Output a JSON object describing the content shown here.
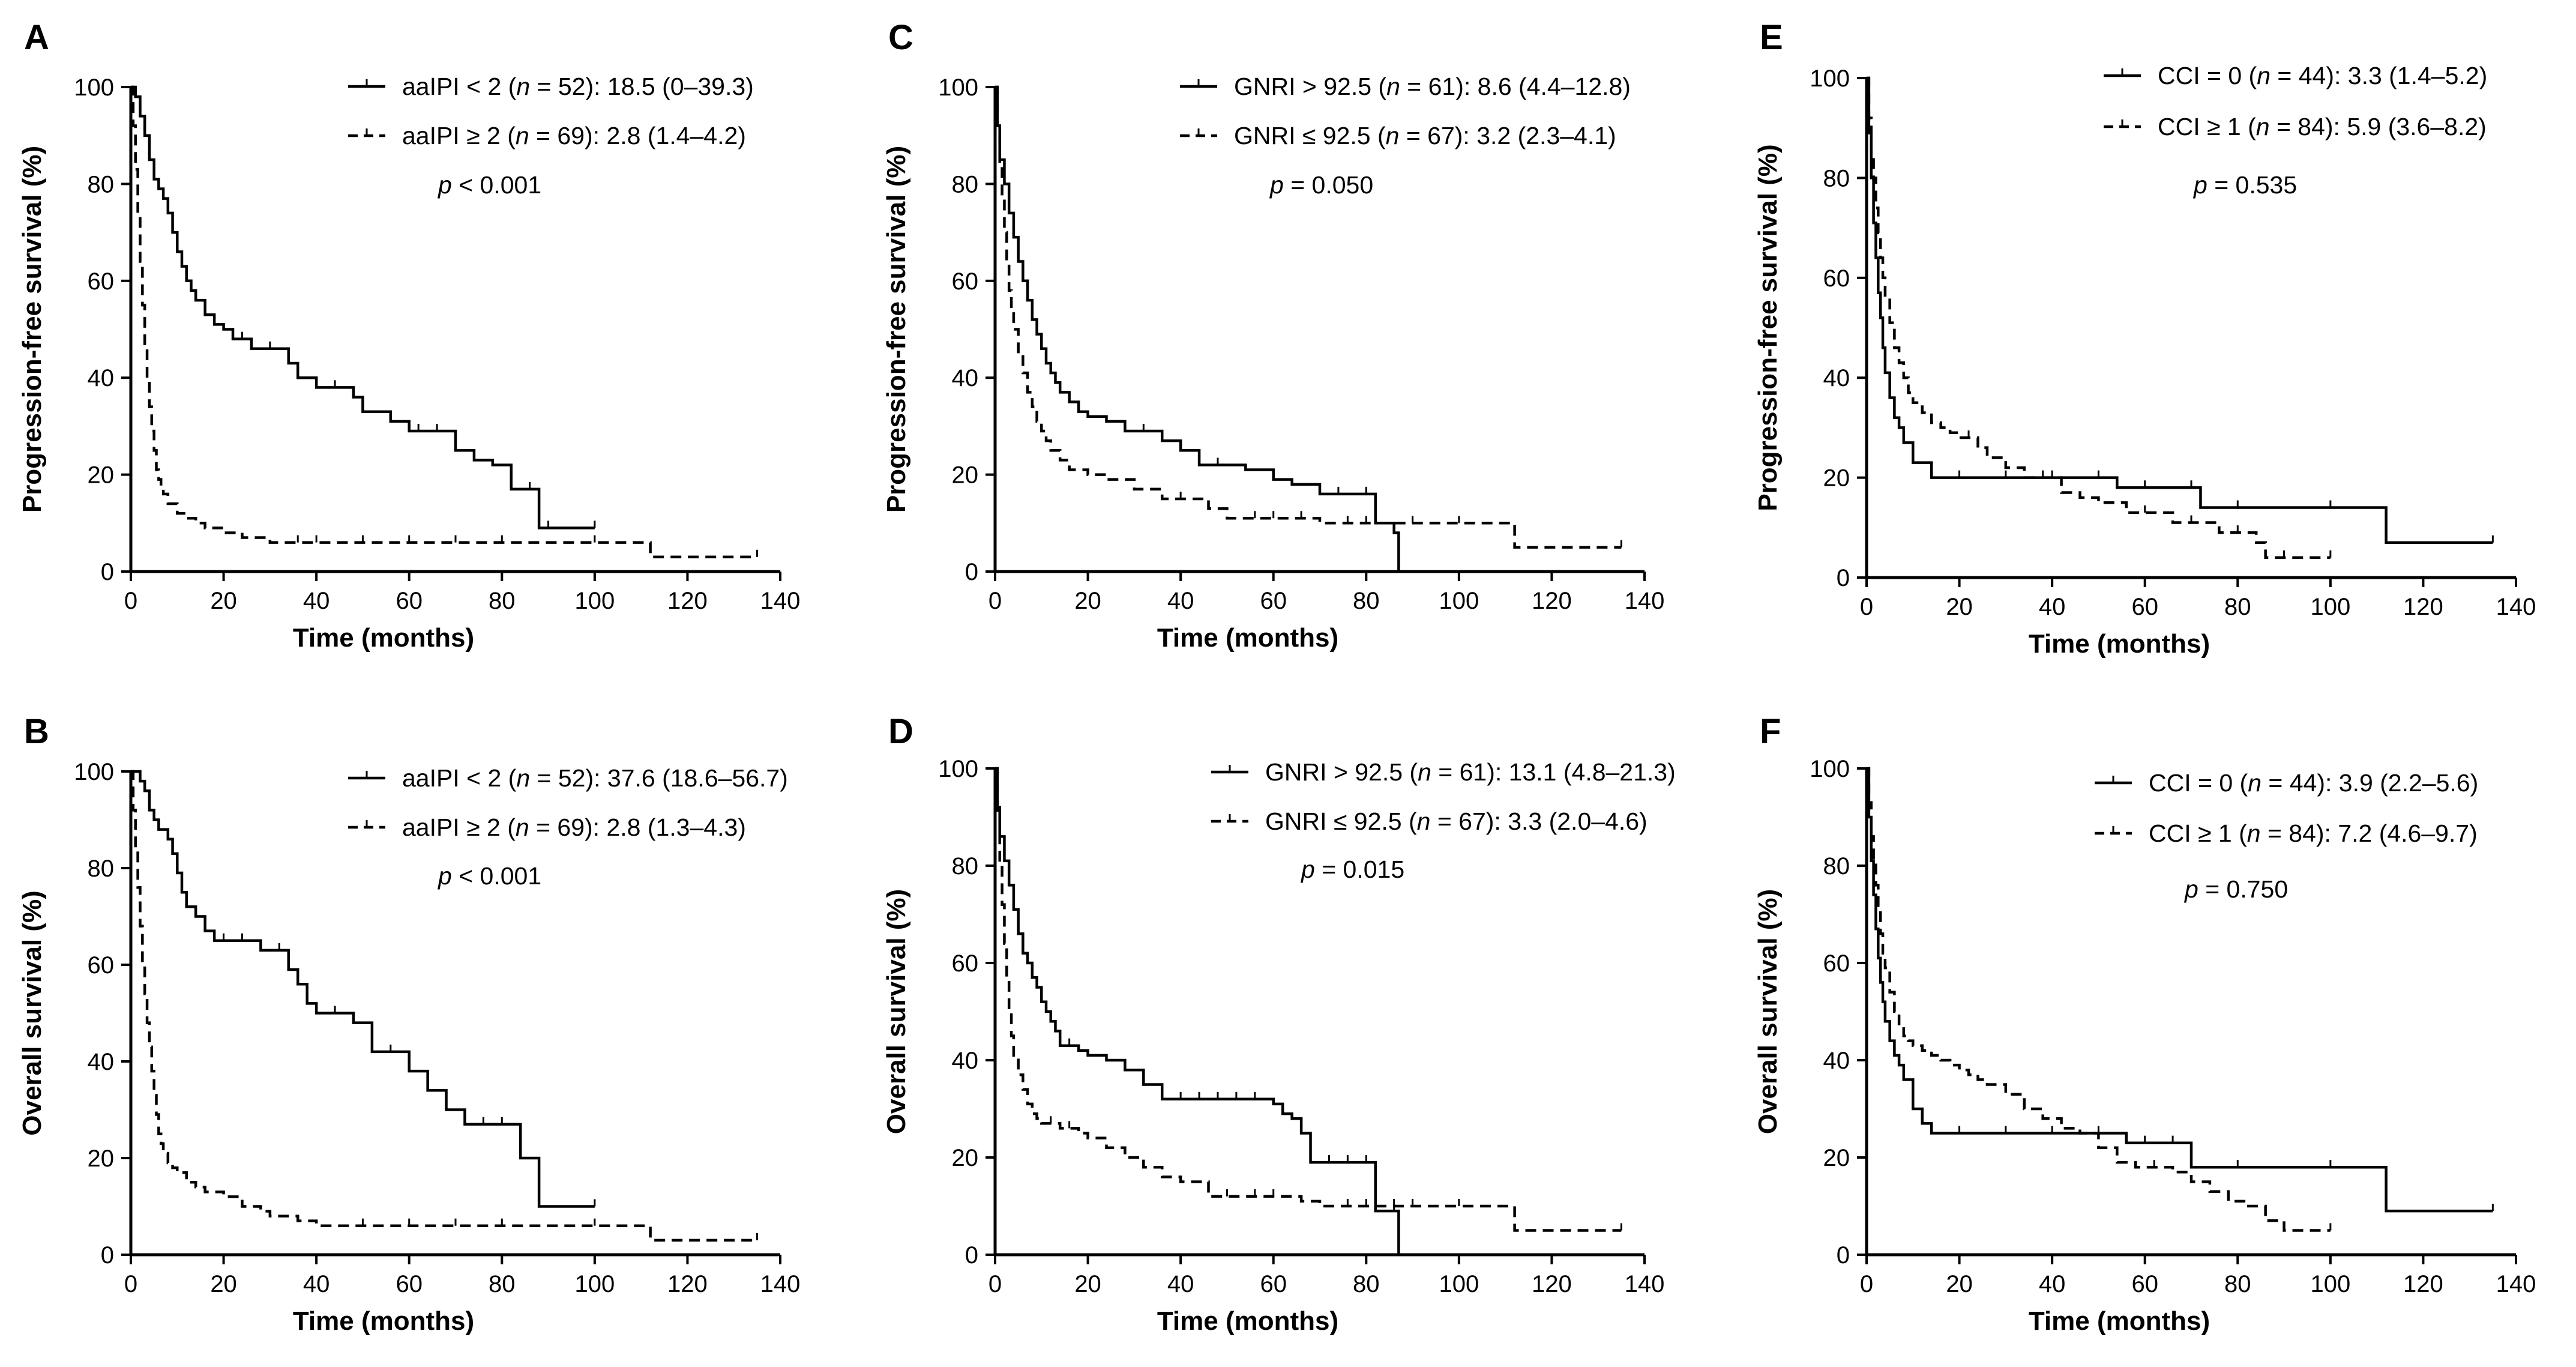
{
  "chart_data": [
    {
      "id": "A",
      "type": "line",
      "panel_label": "A",
      "xlabel": "Time (months)",
      "ylabel": "Progression-free survival (%)",
      "xlim": [
        0,
        140
      ],
      "ylim": [
        0,
        100
      ],
      "xticks": [
        0,
        20,
        40,
        60,
        80,
        100,
        120,
        140
      ],
      "yticks": [
        0,
        20,
        40,
        60,
        80,
        100
      ],
      "p_value": "< 0.001",
      "series": [
        {
          "legend": {
            "group": "aaIPI < 2",
            "n": "52",
            "value": "18.5 (0–39.3)"
          },
          "style": "solid",
          "x": [
            0,
            1,
            2,
            3,
            4,
            5,
            6,
            7,
            8,
            9,
            10,
            11,
            12,
            13,
            14,
            16,
            18,
            20,
            22,
            24,
            26,
            30,
            34,
            36,
            40,
            44,
            48,
            50,
            56,
            60,
            62,
            66,
            70,
            74,
            78,
            82,
            86,
            88,
            90,
            100
          ],
          "y": [
            100,
            98,
            94,
            90,
            85,
            81,
            79,
            77,
            74,
            70,
            66,
            63,
            60,
            58,
            56,
            53,
            51,
            50,
            48,
            48,
            46,
            46,
            43,
            40,
            38,
            38,
            36,
            33,
            31,
            29,
            29,
            29,
            25,
            23,
            22,
            17,
            17,
            9,
            9,
            9
          ]
        },
        {
          "legend": {
            "group": "aaIPI ≥ 2",
            "n": "69",
            "value": "2.8 (1.4–4.2)"
          },
          "style": "dashed",
          "x": [
            0,
            0.5,
            1,
            1.5,
            2,
            2.5,
            3,
            3.5,
            4,
            4.5,
            5,
            5.5,
            6,
            6.5,
            7,
            8,
            10,
            12,
            14,
            16,
            20,
            24,
            30,
            36,
            40,
            50,
            60,
            70,
            80,
            100,
            112,
            135
          ],
          "y": [
            100,
            92,
            83,
            74,
            64,
            55,
            47,
            40,
            34,
            29,
            25,
            21,
            19,
            17,
            16,
            14,
            12,
            11,
            10,
            9,
            8,
            7,
            6,
            6,
            6,
            6,
            6,
            6,
            6,
            6,
            3,
            3
          ]
        }
      ]
    },
    {
      "id": "C",
      "type": "line",
      "panel_label": "C",
      "xlabel": "Time (months)",
      "ylabel": "Progression-free survival (%)",
      "xlim": [
        0,
        140
      ],
      "ylim": [
        0,
        100
      ],
      "xticks": [
        0,
        20,
        40,
        60,
        80,
        100,
        120,
        140
      ],
      "yticks": [
        0,
        20,
        40,
        60,
        80,
        100
      ],
      "p_value": "= 0.050",
      "series": [
        {
          "legend": {
            "group": "GNRI > 92.5",
            "n": "61",
            "value": "8.6 (4.4–12.8)"
          },
          "style": "solid",
          "x": [
            0,
            0.5,
            1,
            2,
            3,
            4,
            5,
            6,
            7,
            8,
            9,
            10,
            11,
            12,
            13,
            14,
            16,
            18,
            20,
            24,
            28,
            32,
            36,
            40,
            44,
            48,
            54,
            60,
            64,
            70,
            74,
            80,
            82,
            86,
            87
          ],
          "y": [
            100,
            92,
            85,
            80,
            74,
            69,
            64,
            60,
            56,
            52,
            49,
            46,
            43,
            41,
            39,
            37,
            35,
            33,
            32,
            31,
            29,
            29,
            27,
            25,
            22,
            22,
            21,
            19,
            18,
            16,
            16,
            16,
            10,
            8,
            0
          ]
        },
        {
          "legend": {
            "group": "GNRI ≤ 92.5",
            "n": "67",
            "value": "3.2 (2.3–4.1)"
          },
          "style": "dashed",
          "x": [
            0,
            0.5,
            1,
            1.5,
            2,
            2.5,
            3,
            3.5,
            4,
            5,
            6,
            7,
            8,
            9,
            10,
            11,
            12,
            14,
            16,
            20,
            24,
            30,
            36,
            40,
            46,
            50,
            56,
            60,
            66,
            70,
            76,
            80,
            90,
            100,
            112,
            135
          ],
          "y": [
            100,
            92,
            84,
            77,
            70,
            64,
            58,
            54,
            50,
            45,
            41,
            37,
            34,
            31,
            29,
            27,
            25,
            23,
            21,
            20,
            19,
            17,
            15,
            15,
            13,
            11,
            11,
            11,
            11,
            10,
            10,
            10,
            10,
            10,
            5,
            5
          ]
        }
      ]
    },
    {
      "id": "E",
      "type": "line",
      "panel_label": "E",
      "xlabel": "Time (months)",
      "ylabel": "Progression-free survival (%)",
      "xlim": [
        0,
        140
      ],
      "ylim": [
        0,
        100
      ],
      "xticks": [
        0,
        20,
        40,
        60,
        80,
        100,
        120,
        140
      ],
      "yticks": [
        0,
        20,
        40,
        60,
        80,
        100
      ],
      "p_value": "= 0.535",
      "series": [
        {
          "legend": {
            "group": "CCI = 0",
            "n": "44",
            "value": "3.3 (1.4–5.2)"
          },
          "style": "solid",
          "x": [
            0,
            0.5,
            1,
            1.5,
            2,
            2.5,
            3,
            3.5,
            4,
            5,
            6,
            7,
            8,
            10,
            14,
            20,
            30,
            40,
            50,
            54,
            60,
            70,
            72,
            80,
            100,
            112,
            135
          ],
          "y": [
            100,
            89,
            80,
            71,
            64,
            57,
            52,
            46,
            41,
            36,
            32,
            30,
            27,
            23,
            20,
            20,
            20,
            20,
            20,
            18,
            18,
            18,
            14,
            14,
            14,
            7,
            7
          ]
        },
        {
          "legend": {
            "group": "CCI ≥ 1",
            "n": "84",
            "value": "5.9 (3.6–8.2)"
          },
          "style": "dashed",
          "x": [
            0,
            0.5,
            1,
            1.5,
            2,
            2.5,
            3,
            3.5,
            4,
            5,
            6,
            7,
            8,
            9,
            10,
            12,
            14,
            16,
            18,
            20,
            22,
            24,
            26,
            30,
            34,
            38,
            42,
            46,
            50,
            56,
            60,
            66,
            70,
            76,
            80,
            84,
            86,
            90,
            100
          ],
          "y": [
            100,
            92,
            85,
            80,
            74,
            69,
            64,
            60,
            56,
            51,
            46,
            43,
            40,
            37,
            35,
            33,
            31,
            30,
            29,
            28,
            28,
            26,
            24,
            22,
            20,
            20,
            17,
            16,
            15,
            13,
            13,
            11,
            11,
            9,
            9,
            7,
            4,
            4,
            4
          ]
        }
      ]
    },
    {
      "id": "B",
      "type": "line",
      "panel_label": "B",
      "xlabel": "Time (months)",
      "ylabel": "Overall survival (%)",
      "xlim": [
        0,
        140
      ],
      "ylim": [
        0,
        100
      ],
      "xticks": [
        0,
        20,
        40,
        60,
        80,
        100,
        120,
        140
      ],
      "yticks": [
        0,
        20,
        40,
        60,
        80,
        100
      ],
      "p_value": "< 0.001",
      "series": [
        {
          "legend": {
            "group": "aaIPI < 2",
            "n": "52",
            "value": "37.6 (18.6–56.7)"
          },
          "style": "solid",
          "x": [
            0,
            2,
            3,
            4,
            5,
            6,
            8,
            9,
            10,
            11,
            12,
            14,
            16,
            18,
            20,
            24,
            28,
            32,
            34,
            36,
            38,
            40,
            44,
            48,
            52,
            56,
            60,
            64,
            68,
            72,
            76,
            80,
            84,
            88,
            100
          ],
          "y": [
            100,
            98,
            96,
            92,
            90,
            88,
            86,
            83,
            79,
            75,
            72,
            70,
            67,
            65,
            65,
            65,
            63,
            63,
            59,
            56,
            52,
            50,
            50,
            48,
            42,
            42,
            38,
            34,
            30,
            27,
            27,
            27,
            20,
            10,
            10
          ]
        },
        {
          "legend": {
            "group": "aaIPI ≥ 2",
            "n": "69",
            "value": "2.8 (1.3–4.3)"
          },
          "style": "dashed",
          "x": [
            0,
            0.5,
            1,
            1.5,
            2,
            2.5,
            3,
            3.5,
            4,
            4.5,
            5,
            5.5,
            6,
            6.5,
            7,
            8,
            9,
            10,
            12,
            14,
            16,
            20,
            24,
            28,
            30,
            36,
            40,
            50,
            60,
            70,
            80,
            100,
            112,
            135
          ],
          "y": [
            100,
            92,
            84,
            76,
            68,
            60,
            54,
            48,
            43,
            38,
            33,
            29,
            25,
            23,
            21,
            19,
            18,
            17,
            15,
            14,
            13,
            12,
            10,
            9,
            8,
            7,
            6,
            6,
            6,
            6,
            6,
            6,
            3,
            3
          ]
        }
      ]
    },
    {
      "id": "D",
      "type": "line",
      "panel_label": "D",
      "xlabel": "Time (months)",
      "ylabel": "Overall survival (%)",
      "xlim": [
        0,
        140
      ],
      "ylim": [
        0,
        100
      ],
      "xticks": [
        0,
        20,
        40,
        60,
        80,
        100,
        120,
        140
      ],
      "yticks": [
        0,
        20,
        40,
        60,
        80,
        100
      ],
      "p_value": "= 0.015",
      "series": [
        {
          "legend": {
            "group": "GNRI > 92.5",
            "n": "61",
            "value": "13.1 (4.8–21.3)"
          },
          "style": "solid",
          "x": [
            0,
            0.5,
            1,
            2,
            3,
            4,
            5,
            6,
            7,
            8,
            9,
            10,
            11,
            12,
            13,
            14,
            16,
            18,
            20,
            24,
            28,
            32,
            36,
            40,
            44,
            48,
            52,
            56,
            60,
            62,
            64,
            66,
            68,
            72,
            76,
            80,
            82,
            86,
            87
          ],
          "y": [
            100,
            92,
            86,
            81,
            76,
            71,
            66,
            62,
            60,
            57,
            55,
            52,
            50,
            48,
            46,
            43,
            43,
            42,
            41,
            40,
            38,
            35,
            32,
            32,
            32,
            32,
            32,
            32,
            31,
            29,
            28,
            25,
            19,
            19,
            19,
            19,
            9,
            9,
            0
          ]
        },
        {
          "legend": {
            "group": "GNRI ≤ 92.5",
            "n": "67",
            "value": "3.3 (2.0–4.6)"
          },
          "style": "dashed",
          "x": [
            0,
            0.5,
            1,
            1.5,
            2,
            2.5,
            3,
            3.5,
            4,
            5,
            6,
            7,
            8,
            9,
            10,
            12,
            14,
            16,
            18,
            20,
            24,
            28,
            32,
            36,
            40,
            46,
            50,
            56,
            60,
            66,
            70,
            76,
            80,
            86,
            90,
            100,
            112,
            135
          ],
          "y": [
            100,
            90,
            80,
            72,
            64,
            57,
            50,
            45,
            41,
            37,
            34,
            31,
            29,
            28,
            27,
            27,
            26,
            26,
            25,
            24,
            22,
            20,
            18,
            16,
            15,
            12,
            12,
            12,
            12,
            11,
            10,
            10,
            10,
            10,
            10,
            10,
            5,
            5
          ]
        }
      ]
    },
    {
      "id": "F",
      "type": "line",
      "panel_label": "F",
      "xlabel": "Time (months)",
      "ylabel": "Overall survival (%)",
      "xlim": [
        0,
        140
      ],
      "ylim": [
        0,
        100
      ],
      "xticks": [
        0,
        20,
        40,
        60,
        80,
        100,
        120,
        140
      ],
      "yticks": [
        0,
        20,
        40,
        60,
        80,
        100
      ],
      "p_value": "= 0.750",
      "series": [
        {
          "legend": {
            "group": "CCI = 0",
            "n": "44",
            "value": "3.9 (2.2–5.6)"
          },
          "style": "solid",
          "x": [
            0,
            0.5,
            1,
            1.5,
            2,
            2.5,
            3,
            3.5,
            4,
            5,
            6,
            7,
            8,
            10,
            12,
            14,
            20,
            30,
            40,
            50,
            56,
            60,
            66,
            70,
            80,
            100,
            112,
            135
          ],
          "y": [
            100,
            90,
            81,
            74,
            67,
            61,
            56,
            52,
            48,
            44,
            41,
            39,
            36,
            30,
            27,
            25,
            25,
            25,
            25,
            25,
            23,
            23,
            23,
            18,
            18,
            18,
            9,
            9
          ]
        },
        {
          "legend": {
            "group": "CCI ≥ 1",
            "n": "84",
            "value": "7.2 (4.6–9.7)"
          },
          "style": "dashed",
          "x": [
            0,
            0.5,
            1,
            1.5,
            2,
            2.5,
            3,
            3.5,
            4,
            5,
            6,
            7,
            8,
            9,
            10,
            12,
            14,
            16,
            18,
            20,
            22,
            24,
            26,
            30,
            34,
            38,
            42,
            46,
            50,
            54,
            58,
            62,
            66,
            70,
            74,
            78,
            82,
            86,
            90,
            100
          ],
          "y": [
            100,
            93,
            86,
            81,
            76,
            71,
            66,
            62,
            59,
            54,
            50,
            47,
            45,
            44,
            43,
            42,
            41,
            40,
            39,
            38,
            37,
            36,
            35,
            33,
            30,
            28,
            26,
            25,
            22,
            19,
            18,
            18,
            17,
            15,
            13,
            11,
            10,
            7,
            5,
            5
          ]
        }
      ]
    }
  ]
}
